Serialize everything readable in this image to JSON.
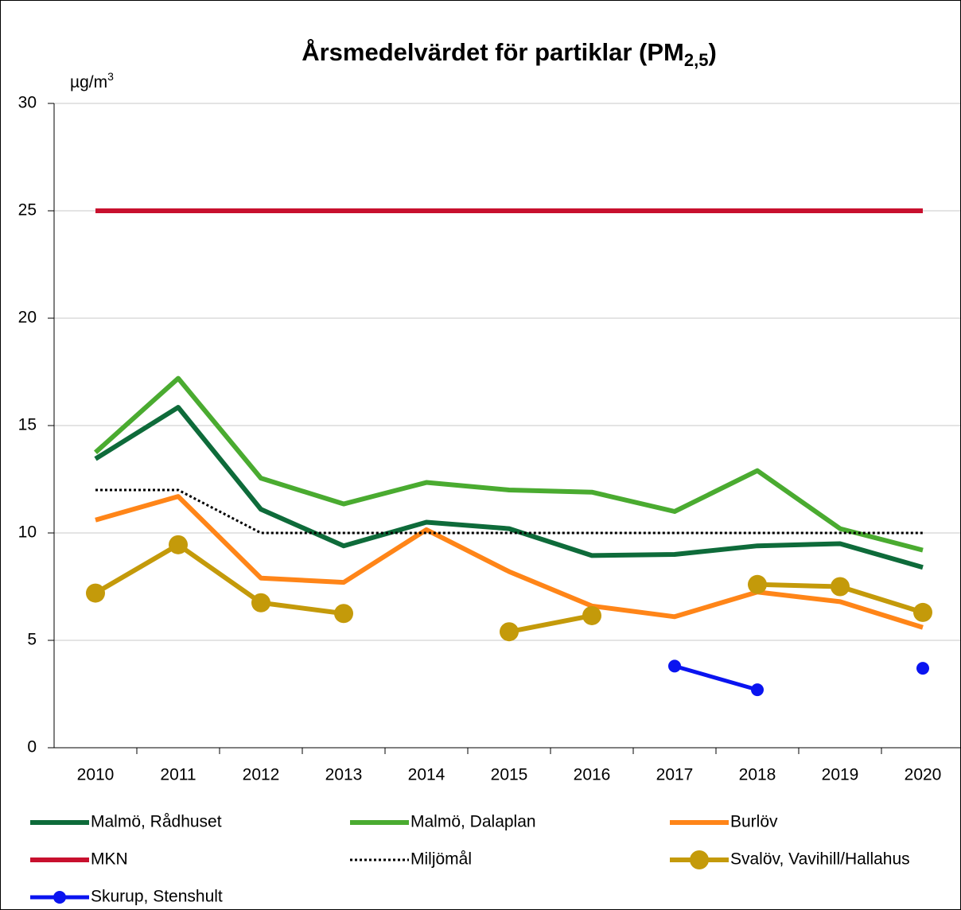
{
  "chart_data": {
    "type": "line",
    "title": [
      "Årsmedelvärdet för partiklar (PM",
      "2,5",
      ")"
    ],
    "y_unit": [
      "µg/m",
      "3"
    ],
    "categories": [
      "2010",
      "2011",
      "2012",
      "2013",
      "2014",
      "2015",
      "2016",
      "2017",
      "2018",
      "2019",
      "2020"
    ],
    "ylim": [
      0,
      30
    ],
    "yticks": [
      0,
      5,
      10,
      15,
      20,
      25,
      30
    ],
    "grid": true,
    "series": [
      {
        "name": "Malmö, Rådhuset",
        "color": "#0e6b3a",
        "style": "solid",
        "values": [
          13.45,
          15.85,
          11.1,
          9.4,
          10.5,
          10.2,
          8.95,
          9.0,
          9.4,
          9.5,
          8.4
        ]
      },
      {
        "name": "Malmö, Dalaplan",
        "color": "#4aab30",
        "style": "solid",
        "values": [
          13.75,
          17.2,
          12.55,
          11.35,
          12.35,
          12.0,
          11.9,
          11.0,
          12.9,
          10.2,
          9.2
        ]
      },
      {
        "name": "Burlöv",
        "color": "#ff8518",
        "style": "solid",
        "values": [
          10.6,
          11.7,
          7.9,
          7.7,
          10.15,
          8.2,
          6.6,
          6.1,
          7.25,
          6.8,
          5.6
        ]
      },
      {
        "name": "MKN",
        "color": "#c8102e",
        "style": "solid",
        "values": [
          25,
          25,
          25,
          25,
          25,
          25,
          25,
          25,
          25,
          25,
          25
        ]
      },
      {
        "name": "Miljömål",
        "color": "#000000",
        "style": "dotted",
        "values": [
          12,
          12,
          10,
          10,
          10,
          10,
          10,
          10,
          10,
          10,
          10
        ]
      },
      {
        "name": "Svalöv, Vavihill/Hallahus",
        "color": "#c49a0a",
        "style": "solid",
        "marker": "circle",
        "values": [
          7.2,
          9.45,
          6.75,
          6.25,
          null,
          5.4,
          6.15,
          null,
          7.6,
          7.5,
          6.3
        ]
      },
      {
        "name": "Skurup, Stenshult",
        "color": "#0a14f0",
        "style": "solid",
        "marker": "circle",
        "values": [
          null,
          null,
          null,
          null,
          null,
          null,
          null,
          3.8,
          2.7,
          null,
          3.7
        ]
      }
    ]
  }
}
